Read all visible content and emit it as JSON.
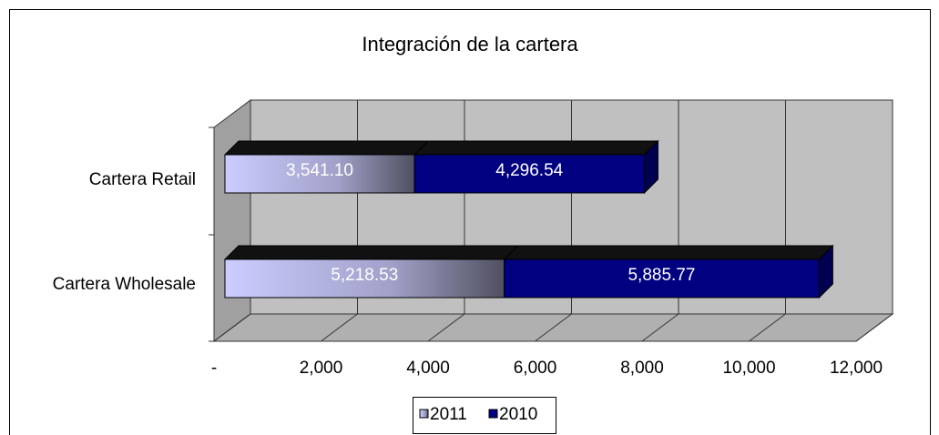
{
  "chart_data": {
    "type": "bar3d_stacked_horizontal",
    "title": "Integración de la cartera",
    "categories": [
      "Cartera Retail",
      "Cartera Wholesale"
    ],
    "series": [
      {
        "name": "2011",
        "color": "#ccccff",
        "values": [
          3541.1,
          5218.53
        ],
        "value_labels": [
          "3,541.10",
          "5,218.53"
        ]
      },
      {
        "name": "2010",
        "color": "#000080",
        "values": [
          4296.54,
          5885.77
        ],
        "value_labels": [
          "4,296.54",
          "5,885.77"
        ]
      }
    ],
    "xlim": [
      0,
      12000
    ],
    "xticks": [
      {
        "value": 0,
        "label": "-"
      },
      {
        "value": 2000,
        "label": "2,000"
      },
      {
        "value": 4000,
        "label": "4,000"
      },
      {
        "value": 6000,
        "label": "6,000"
      },
      {
        "value": 8000,
        "label": "8,000"
      },
      {
        "value": 10000,
        "label": "10,000"
      },
      {
        "value": 12000,
        "label": "12,000"
      }
    ],
    "grid": true,
    "legend": "bottom"
  }
}
